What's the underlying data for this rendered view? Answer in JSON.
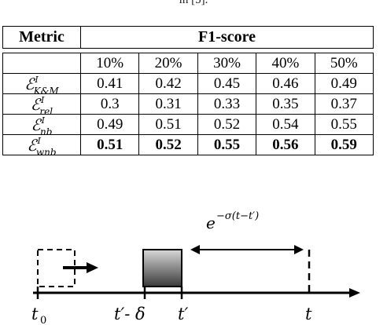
{
  "caption_tail": "in [5].",
  "table": {
    "metric_header": "Metric",
    "f1_header": "F1-score",
    "percent_columns": [
      "10%",
      "20%",
      "30%",
      "40%",
      "50%"
    ],
    "rows": [
      {
        "base": "ℰ",
        "sup": "I",
        "sub": "K&M",
        "values": [
          "0.41",
          "0.42",
          "0.45",
          "0.46",
          "0.49"
        ],
        "bold": false
      },
      {
        "base": "ℰ",
        "sup": "I",
        "sub": "rel",
        "values": [
          "0.3",
          "0.31",
          "0.33",
          "0.35",
          "0.37"
        ],
        "bold": false
      },
      {
        "base": "ℰ",
        "sup": "I",
        "sub": "nb",
        "values": [
          "0.49",
          "0.51",
          "0.52",
          "0.54",
          "0.55"
        ],
        "bold": false
      },
      {
        "base": "ℰ",
        "sup": "I",
        "sub": "wnb",
        "values": [
          "0.51",
          "0.52",
          "0.55",
          "0.56",
          "0.59"
        ],
        "bold": true
      }
    ]
  },
  "diagram": {
    "decay_formula": "e",
    "decay_exponent": "−σ(t−t′)",
    "label_t0_base": "t",
    "label_t0_sub": "0",
    "label_t_prime_minus_delta": "t′- δ",
    "label_t_prime": "t′",
    "label_t": "t"
  }
}
